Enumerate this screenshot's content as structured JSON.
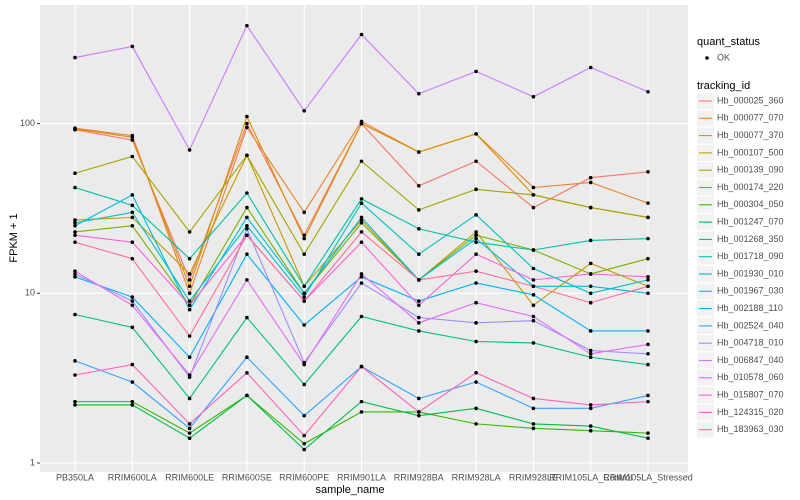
{
  "chart_data": {
    "type": "line",
    "x_label": "sample_name",
    "y_label": "FPKM + 1",
    "log_scale": true,
    "grid": true,
    "legend_position": "right",
    "point_legend_title": "quant_status",
    "point_legend_label": "OK",
    "point_color": "#000000",
    "legend_title": "tracking_id",
    "categories": [
      "PB350LA",
      "RRIM600LA",
      "RRIM600LE",
      "RRIM600SE",
      "RRIM600PE",
      "RRIM901LA",
      "RRIM928BA",
      "RRIM928LA",
      "RRIM928LE",
      "RRIM105LA_Control",
      "RRIM105LA_Stressed"
    ],
    "ylim": [
      0.885,
      500
    ],
    "yticks": [
      1,
      10,
      100
    ],
    "series": [
      {
        "name": "Hb_000025_360",
        "color": "#F8766D",
        "values": [
          92,
          80,
          12,
          100,
          22,
          100,
          43,
          60,
          32,
          48,
          52
        ]
      },
      {
        "name": "Hb_000077_070",
        "color": "#EA8331",
        "values": [
          94,
          85,
          10,
          95,
          30,
          103,
          68,
          87,
          42,
          45,
          34
        ]
      },
      {
        "name": "Hb_000077_370",
        "color": "#D89000",
        "values": [
          93,
          83,
          11,
          110,
          21,
          100,
          68,
          87,
          38,
          32,
          28
        ]
      },
      {
        "name": "Hb_000107_500",
        "color": "#C09B00",
        "values": [
          27,
          28,
          13,
          65,
          11,
          27,
          12,
          23,
          8.5,
          15,
          11
        ]
      },
      {
        "name": "Hb_000139_090",
        "color": "#A3A500",
        "values": [
          51,
          64,
          23,
          65,
          17,
          60,
          31,
          41,
          38,
          32,
          28
        ]
      },
      {
        "name": "Hb_000174_220",
        "color": "#7CAE00",
        "values": [
          23,
          25,
          8.5,
          32,
          10,
          26,
          12,
          22,
          18,
          13,
          16
        ]
      },
      {
        "name": "Hb_000304_050",
        "color": "#39B600",
        "values": [
          2.3,
          2.3,
          1.5,
          2.5,
          1.3,
          2.0,
          2.0,
          1.7,
          1.6,
          1.55,
          1.5
        ]
      },
      {
        "name": "Hb_001247_070",
        "color": "#00BB4E",
        "values": [
          2.2,
          2.2,
          1.4,
          2.5,
          1.2,
          2.3,
          1.9,
          2.1,
          1.7,
          1.65,
          1.4
        ]
      },
      {
        "name": "Hb_001268_350",
        "color": "#00BF7D",
        "values": [
          7.5,
          6.3,
          2.4,
          7.2,
          2.9,
          7.3,
          6.0,
          5.2,
          5.1,
          4.2,
          3.8
        ]
      },
      {
        "name": "Hb_001718_090",
        "color": "#00C1A3",
        "values": [
          42,
          33,
          16,
          39,
          11,
          36,
          24,
          20,
          18,
          20.5,
          21
        ]
      },
      {
        "name": "Hb_001930_010",
        "color": "#00BFC4",
        "values": [
          26,
          30,
          9,
          25,
          9.5,
          34,
          17,
          29,
          14,
          10,
          12
        ]
      },
      {
        "name": "Hb_001967_030",
        "color": "#00BAE0",
        "values": [
          25,
          38,
          8,
          28,
          10,
          28,
          12,
          21,
          11,
          11,
          10
        ]
      },
      {
        "name": "Hb_002188_110",
        "color": "#00B0F6",
        "values": [
          12.5,
          9.5,
          4.2,
          17,
          6.5,
          12.5,
          9,
          11.5,
          9.8,
          6,
          6
        ]
      },
      {
        "name": "Hb_002524_040",
        "color": "#35A2FF",
        "values": [
          4,
          3.0,
          1.6,
          4.2,
          1.9,
          3.7,
          2.4,
          3.0,
          2.1,
          2.1,
          2.5
        ]
      },
      {
        "name": "Hb_004718_010",
        "color": "#9590FF",
        "values": [
          13,
          9,
          3.2,
          24,
          3.9,
          11.5,
          7.2,
          6.7,
          6.9,
          4.6,
          4.4
        ]
      },
      {
        "name": "Hb_006847_040",
        "color": "#C77CFF",
        "values": [
          245,
          285,
          70,
          378,
          119,
          335,
          150,
          203,
          144,
          214,
          154
        ]
      },
      {
        "name": "Hb_010578_060",
        "color": "#E76BF3",
        "values": [
          13.5,
          8.5,
          3.3,
          12,
          3.8,
          13,
          6.7,
          8.8,
          7.3,
          4.4,
          5.0
        ]
      },
      {
        "name": "Hb_015807_070",
        "color": "#FA62DB",
        "values": [
          22,
          20,
          8.5,
          22,
          9,
          20,
          8.5,
          17,
          12,
          13,
          12.5
        ]
      },
      {
        "name": "Hb_124315_020",
        "color": "#FF62BC",
        "values": [
          3.3,
          3.8,
          1.7,
          3.4,
          1.45,
          3.7,
          2.0,
          3.4,
          2.4,
          2.2,
          2.3
        ]
      },
      {
        "name": "Hb_183963_030",
        "color": "#FF6C91",
        "values": [
          20,
          16,
          5.6,
          22,
          9,
          23,
          12,
          13.5,
          11,
          8.8,
          11
        ]
      }
    ]
  }
}
